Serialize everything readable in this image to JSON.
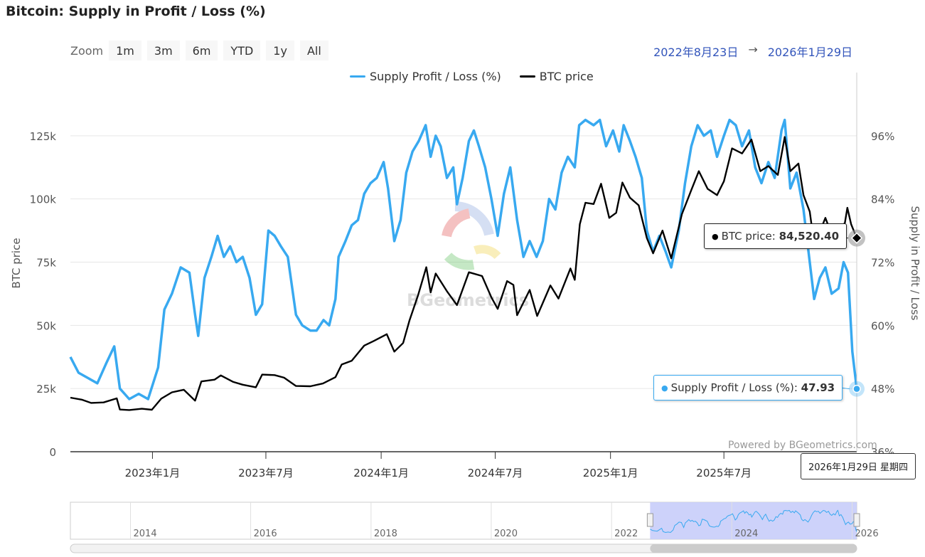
{
  "title": "Bitcoin: Supply in Profit / Loss (%)",
  "zoom": {
    "label": "Zoom",
    "buttons": [
      "1m",
      "3m",
      "6m",
      "YTD",
      "1y",
      "All"
    ]
  },
  "range": {
    "from": "2022年8月23日",
    "arrow": "→",
    "to": "2026年1月29日"
  },
  "legend": [
    {
      "label": "Supply Profit / Loss (%)",
      "color": "#38a9f0"
    },
    {
      "label": "BTC price",
      "color": "#000000"
    }
  ],
  "tooltips": {
    "btc_label": "BTC price: ",
    "btc_value": "84,520.40",
    "supply_label": "Supply Profit / Loss (%): ",
    "supply_value": "47.93",
    "date": "2026年1月29日 星期四"
  },
  "credit": "Powered by BGeometrics.com",
  "watermark": "BGeometrics",
  "navigator": {
    "year_labels": [
      "2014",
      "2016",
      "2018",
      "2020",
      "2022",
      "2024",
      "2026"
    ]
  },
  "chart_data": {
    "type": "line",
    "title": "Bitcoin: Supply in Profit / Loss (%)",
    "x_range": [
      "2022-08-23",
      "2026-01-29"
    ],
    "x_tick_labels": [
      "2023年1月",
      "2023年7月",
      "2024年1月",
      "2024年7月",
      "2025年1月",
      "2025年7月"
    ],
    "y_left": {
      "label": "BTC price",
      "ticks": [
        "0",
        "25k",
        "50k",
        "75k",
        "100k",
        "125k"
      ],
      "range": [
        0,
        150000
      ]
    },
    "y_right": {
      "label": "Supply in Profit / Loss",
      "ticks": [
        "36%",
        "48%",
        "60%",
        "72%",
        "84%",
        "96%"
      ],
      "range": [
        36,
        108
      ]
    },
    "series": [
      {
        "name": "Supply Profit / Loss (%)",
        "axis": "right",
        "color": "#38a9f0",
        "points": [
          [
            "2022-08-23",
            54
          ],
          [
            "2022-09-05",
            51
          ],
          [
            "2022-09-20",
            50
          ],
          [
            "2022-10-05",
            49
          ],
          [
            "2022-10-20",
            53
          ],
          [
            "2022-11-01",
            56
          ],
          [
            "2022-11-10",
            48
          ],
          [
            "2022-11-25",
            46
          ],
          [
            "2022-12-10",
            47
          ],
          [
            "2022-12-25",
            46
          ],
          [
            "2023-01-10",
            52
          ],
          [
            "2023-01-20",
            63
          ],
          [
            "2023-02-01",
            66
          ],
          [
            "2023-02-15",
            71
          ],
          [
            "2023-03-01",
            70
          ],
          [
            "2023-03-10",
            62
          ],
          [
            "2023-03-15",
            58
          ],
          [
            "2023-03-25",
            69
          ],
          [
            "2023-04-05",
            73
          ],
          [
            "2023-04-15",
            77
          ],
          [
            "2023-04-25",
            73
          ],
          [
            "2023-05-05",
            75
          ],
          [
            "2023-05-15",
            72
          ],
          [
            "2023-05-25",
            73
          ],
          [
            "2023-06-05",
            69
          ],
          [
            "2023-06-15",
            62
          ],
          [
            "2023-06-25",
            64
          ],
          [
            "2023-07-05",
            78
          ],
          [
            "2023-07-15",
            77
          ],
          [
            "2023-07-25",
            75
          ],
          [
            "2023-08-05",
            73
          ],
          [
            "2023-08-18",
            62
          ],
          [
            "2023-08-28",
            60
          ],
          [
            "2023-09-10",
            59
          ],
          [
            "2023-09-20",
            59
          ],
          [
            "2023-10-01",
            61
          ],
          [
            "2023-10-10",
            60
          ],
          [
            "2023-10-20",
            65
          ],
          [
            "2023-10-25",
            73
          ],
          [
            "2023-11-05",
            76
          ],
          [
            "2023-11-15",
            79
          ],
          [
            "2023-11-25",
            80
          ],
          [
            "2023-12-05",
            85
          ],
          [
            "2023-12-15",
            87
          ],
          [
            "2023-12-25",
            88
          ],
          [
            "2024-01-05",
            91
          ],
          [
            "2024-01-12",
            86
          ],
          [
            "2024-01-22",
            76
          ],
          [
            "2024-02-01",
            80
          ],
          [
            "2024-02-10",
            89
          ],
          [
            "2024-02-20",
            93
          ],
          [
            "2024-03-01",
            95
          ],
          [
            "2024-03-12",
            98
          ],
          [
            "2024-03-20",
            92
          ],
          [
            "2024-03-28",
            96
          ],
          [
            "2024-04-05",
            94
          ],
          [
            "2024-04-15",
            88
          ],
          [
            "2024-04-25",
            90
          ],
          [
            "2024-05-01",
            83
          ],
          [
            "2024-05-10",
            88
          ],
          [
            "2024-05-20",
            95
          ],
          [
            "2024-05-28",
            97
          ],
          [
            "2024-06-05",
            94
          ],
          [
            "2024-06-15",
            90
          ],
          [
            "2024-06-25",
            84
          ],
          [
            "2024-07-05",
            77
          ],
          [
            "2024-07-15",
            85
          ],
          [
            "2024-07-25",
            90
          ],
          [
            "2024-08-05",
            80
          ],
          [
            "2024-08-15",
            73
          ],
          [
            "2024-08-25",
            76
          ],
          [
            "2024-09-05",
            73
          ],
          [
            "2024-09-15",
            76
          ],
          [
            "2024-09-25",
            84
          ],
          [
            "2024-10-05",
            82
          ],
          [
            "2024-10-15",
            89
          ],
          [
            "2024-10-25",
            92
          ],
          [
            "2024-11-05",
            90
          ],
          [
            "2024-11-12",
            98
          ],
          [
            "2024-11-22",
            99
          ],
          [
            "2024-12-05",
            98
          ],
          [
            "2024-12-15",
            99
          ],
          [
            "2024-12-25",
            94
          ],
          [
            "2025-01-05",
            97
          ],
          [
            "2025-01-15",
            93
          ],
          [
            "2025-01-22",
            98
          ],
          [
            "2025-02-01",
            95
          ],
          [
            "2025-02-10",
            92
          ],
          [
            "2025-02-20",
            88
          ],
          [
            "2025-02-28",
            78
          ],
          [
            "2025-03-10",
            74
          ],
          [
            "2025-03-20",
            77
          ],
          [
            "2025-03-30",
            74
          ],
          [
            "2025-04-08",
            71
          ],
          [
            "2025-04-20",
            78
          ],
          [
            "2025-04-30",
            87
          ],
          [
            "2025-05-10",
            94
          ],
          [
            "2025-05-20",
            98
          ],
          [
            "2025-05-30",
            96
          ],
          [
            "2025-06-10",
            97
          ],
          [
            "2025-06-20",
            92
          ],
          [
            "2025-07-01",
            96
          ],
          [
            "2025-07-10",
            99
          ],
          [
            "2025-07-20",
            98
          ],
          [
            "2025-07-30",
            94
          ],
          [
            "2025-08-10",
            97
          ],
          [
            "2025-08-20",
            90
          ],
          [
            "2025-08-30",
            87
          ],
          [
            "2025-09-10",
            91
          ],
          [
            "2025-09-20",
            88
          ],
          [
            "2025-10-01",
            97
          ],
          [
            "2025-10-06",
            99
          ],
          [
            "2025-10-15",
            86
          ],
          [
            "2025-10-25",
            89
          ],
          [
            "2025-11-05",
            82
          ],
          [
            "2025-11-15",
            72
          ],
          [
            "2025-11-22",
            65
          ],
          [
            "2025-12-01",
            69
          ],
          [
            "2025-12-10",
            71
          ],
          [
            "2025-12-20",
            66
          ],
          [
            "2025-12-31",
            67
          ],
          [
            "2026-01-08",
            72
          ],
          [
            "2026-01-15",
            70
          ],
          [
            "2026-01-22",
            55
          ],
          [
            "2026-01-29",
            47.93
          ]
        ]
      },
      {
        "name": "BTC price",
        "axis": "left",
        "color": "#000000",
        "points": [
          [
            "2022-08-23",
            21400
          ],
          [
            "2022-09-10",
            20600
          ],
          [
            "2022-09-25",
            19300
          ],
          [
            "2022-10-15",
            19500
          ],
          [
            "2022-11-05",
            21100
          ],
          [
            "2022-11-10",
            16700
          ],
          [
            "2022-11-25",
            16500
          ],
          [
            "2022-12-15",
            17000
          ],
          [
            "2022-12-31",
            16600
          ],
          [
            "2023-01-15",
            21000
          ],
          [
            "2023-02-01",
            23500
          ],
          [
            "2023-02-20",
            24500
          ],
          [
            "2023-03-10",
            20200
          ],
          [
            "2023-03-20",
            27800
          ],
          [
            "2023-04-10",
            28500
          ],
          [
            "2023-04-20",
            30200
          ],
          [
            "2023-05-10",
            27600
          ],
          [
            "2023-05-25",
            26500
          ],
          [
            "2023-06-15",
            25500
          ],
          [
            "2023-06-25",
            30500
          ],
          [
            "2023-07-15",
            30300
          ],
          [
            "2023-07-30",
            29300
          ],
          [
            "2023-08-18",
            26000
          ],
          [
            "2023-09-10",
            25900
          ],
          [
            "2023-09-30",
            27000
          ],
          [
            "2023-10-20",
            29500
          ],
          [
            "2023-10-30",
            34500
          ],
          [
            "2023-11-15",
            36000
          ],
          [
            "2023-12-05",
            42000
          ],
          [
            "2023-12-20",
            43800
          ],
          [
            "2024-01-10",
            46500
          ],
          [
            "2024-01-22",
            39600
          ],
          [
            "2024-02-05",
            43000
          ],
          [
            "2024-02-15",
            51800
          ],
          [
            "2024-02-29",
            62000
          ],
          [
            "2024-03-13",
            73000
          ],
          [
            "2024-03-20",
            63000
          ],
          [
            "2024-03-28",
            70500
          ],
          [
            "2024-04-15",
            63500
          ],
          [
            "2024-05-01",
            58000
          ],
          [
            "2024-05-20",
            71000
          ],
          [
            "2024-06-10",
            69500
          ],
          [
            "2024-06-25",
            61000
          ],
          [
            "2024-07-05",
            56500
          ],
          [
            "2024-07-20",
            67500
          ],
          [
            "2024-07-30",
            66000
          ],
          [
            "2024-08-05",
            54000
          ],
          [
            "2024-08-25",
            64000
          ],
          [
            "2024-09-06",
            53700
          ],
          [
            "2024-09-27",
            65800
          ],
          [
            "2024-10-10",
            60600
          ],
          [
            "2024-10-29",
            72500
          ],
          [
            "2024-11-05",
            68000
          ],
          [
            "2024-11-13",
            90000
          ],
          [
            "2024-11-22",
            98500
          ],
          [
            "2024-12-05",
            98000
          ],
          [
            "2024-12-17",
            106000
          ],
          [
            "2024-12-30",
            92500
          ],
          [
            "2025-01-10",
            94500
          ],
          [
            "2025-01-20",
            106500
          ],
          [
            "2025-02-01",
            100500
          ],
          [
            "2025-02-15",
            97500
          ],
          [
            "2025-02-28",
            84500
          ],
          [
            "2025-03-10",
            78500
          ],
          [
            "2025-03-25",
            87500
          ],
          [
            "2025-04-08",
            76500
          ],
          [
            "2025-04-25",
            94000
          ],
          [
            "2025-05-10",
            103500
          ],
          [
            "2025-05-22",
            111000
          ],
          [
            "2025-06-05",
            104000
          ],
          [
            "2025-06-20",
            101500
          ],
          [
            "2025-07-01",
            107000
          ],
          [
            "2025-07-14",
            120000
          ],
          [
            "2025-07-30",
            118000
          ],
          [
            "2025-08-14",
            123500
          ],
          [
            "2025-08-28",
            111000
          ],
          [
            "2025-09-10",
            113000
          ],
          [
            "2025-09-25",
            109500
          ],
          [
            "2025-10-06",
            124500
          ],
          [
            "2025-10-15",
            111000
          ],
          [
            "2025-10-28",
            114000
          ],
          [
            "2025-11-05",
            101500
          ],
          [
            "2025-11-15",
            95000
          ],
          [
            "2025-11-21",
            84000
          ],
          [
            "2025-12-01",
            87000
          ],
          [
            "2025-12-10",
            92500
          ],
          [
            "2025-12-20",
            86000
          ],
          [
            "2025-12-31",
            87500
          ],
          [
            "2026-01-10",
            90500
          ],
          [
            "2026-01-14",
            96500
          ],
          [
            "2026-01-20",
            90000
          ],
          [
            "2026-01-29",
            84520.4
          ]
        ]
      }
    ],
    "highlight": {
      "date": "2026-01-29",
      "btc_price": 84520.4,
      "supply_pct": 47.93
    },
    "navigator_selected_range": [
      "2022-08-23",
      "2026-01-29"
    ],
    "navigator_range": [
      "2013-01-01",
      "2026-01-29"
    ]
  }
}
